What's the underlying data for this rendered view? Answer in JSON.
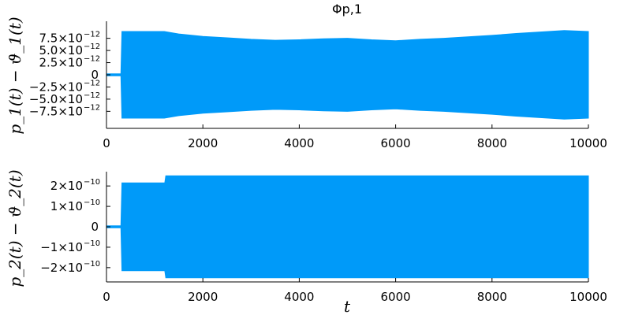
{
  "chart_data": [
    {
      "type": "line",
      "title": "Φp,1",
      "ylabel": "p_1(t) − ϑ_1(t)",
      "xlabel": "",
      "xlim": [
        0,
        10000
      ],
      "ylim": [
        -1.1e-11,
        1.1e-11
      ],
      "x_ticks": [
        0,
        2000,
        4000,
        6000,
        8000,
        10000
      ],
      "x_tick_labels": [
        "0",
        "2000",
        "4000",
        "6000",
        "8000",
        "10000"
      ],
      "y_ticks": [
        7.5e-12,
        5e-12,
        2.5e-12,
        0,
        -2.5e-12,
        -5e-12,
        -7.5e-12
      ],
      "y_tick_labels": [
        {
          "mantissa": "7.5×10",
          "exponent": "−12"
        },
        {
          "mantissa": "5.0×10",
          "exponent": "−12"
        },
        {
          "mantissa": "2.5×10",
          "exponent": "−12"
        },
        {
          "mantissa": "0",
          "exponent": ""
        },
        {
          "mantissa": "−2.5×10",
          "exponent": "−12"
        },
        {
          "mantissa": "−5.0×10",
          "exponent": "−12"
        },
        {
          "mantissa": "−7.5×10",
          "exponent": "−12"
        }
      ],
      "grid": false,
      "legend": "none",
      "series_color": "#009af9",
      "envelope": {
        "x": [
          0,
          300,
          320,
          1200,
          1500,
          2000,
          2500,
          3000,
          3500,
          4000,
          4500,
          5000,
          5500,
          6000,
          6500,
          7000,
          7500,
          8000,
          8500,
          9000,
          9500,
          10000
        ],
        "upper": [
          2e-13,
          2e-13,
          8.9e-12,
          8.9e-12,
          8.4e-12,
          7.9e-12,
          7.6e-12,
          7.3e-12,
          7.1e-12,
          7.2e-12,
          7.4e-12,
          7.5e-12,
          7.2e-12,
          7e-12,
          7.3e-12,
          7.5e-12,
          7.8e-12,
          8.1e-12,
          8.5e-12,
          8.8e-12,
          9.1e-12,
          8.9e-12
        ],
        "lower": [
          -2e-13,
          -2e-13,
          -8.9e-12,
          -8.9e-12,
          -8.4e-12,
          -7.9e-12,
          -7.6e-12,
          -7.3e-12,
          -7.1e-12,
          -7.2e-12,
          -7.4e-12,
          -7.5e-12,
          -7.2e-12,
          -7e-12,
          -7.3e-12,
          -7.5e-12,
          -7.8e-12,
          -8.1e-12,
          -8.5e-12,
          -8.8e-12,
          -9.1e-12,
          -8.9e-12
        ]
      }
    },
    {
      "type": "line",
      "title": "",
      "ylabel": "p_2(t) − ϑ_2(t)",
      "xlabel": "t",
      "xlim": [
        0,
        10000
      ],
      "ylim": [
        -2.7e-10,
        2.7e-10
      ],
      "x_ticks": [
        0,
        2000,
        4000,
        6000,
        8000,
        10000
      ],
      "x_tick_labels": [
        "0",
        "2000",
        "4000",
        "6000",
        "8000",
        "10000"
      ],
      "y_ticks": [
        2e-10,
        1e-10,
        0,
        -1e-10,
        -2e-10
      ],
      "y_tick_labels": [
        {
          "mantissa": "2×10",
          "exponent": "−10"
        },
        {
          "mantissa": "1×10",
          "exponent": "−10"
        },
        {
          "mantissa": "0",
          "exponent": ""
        },
        {
          "mantissa": "−1×10",
          "exponent": "−10"
        },
        {
          "mantissa": "−2×10",
          "exponent": "−10"
        }
      ],
      "grid": false,
      "legend": "none",
      "series_color": "#009af9",
      "envelope": {
        "x": [
          0,
          300,
          320,
          1210,
          1230,
          10000
        ],
        "upper": [
          5e-12,
          5e-12,
          2.15e-10,
          2.15e-10,
          2.5e-10,
          2.5e-10
        ],
        "lower": [
          -5e-12,
          -5e-12,
          -2.15e-10,
          -2.15e-10,
          -2.5e-10,
          -2.5e-10
        ]
      }
    }
  ]
}
